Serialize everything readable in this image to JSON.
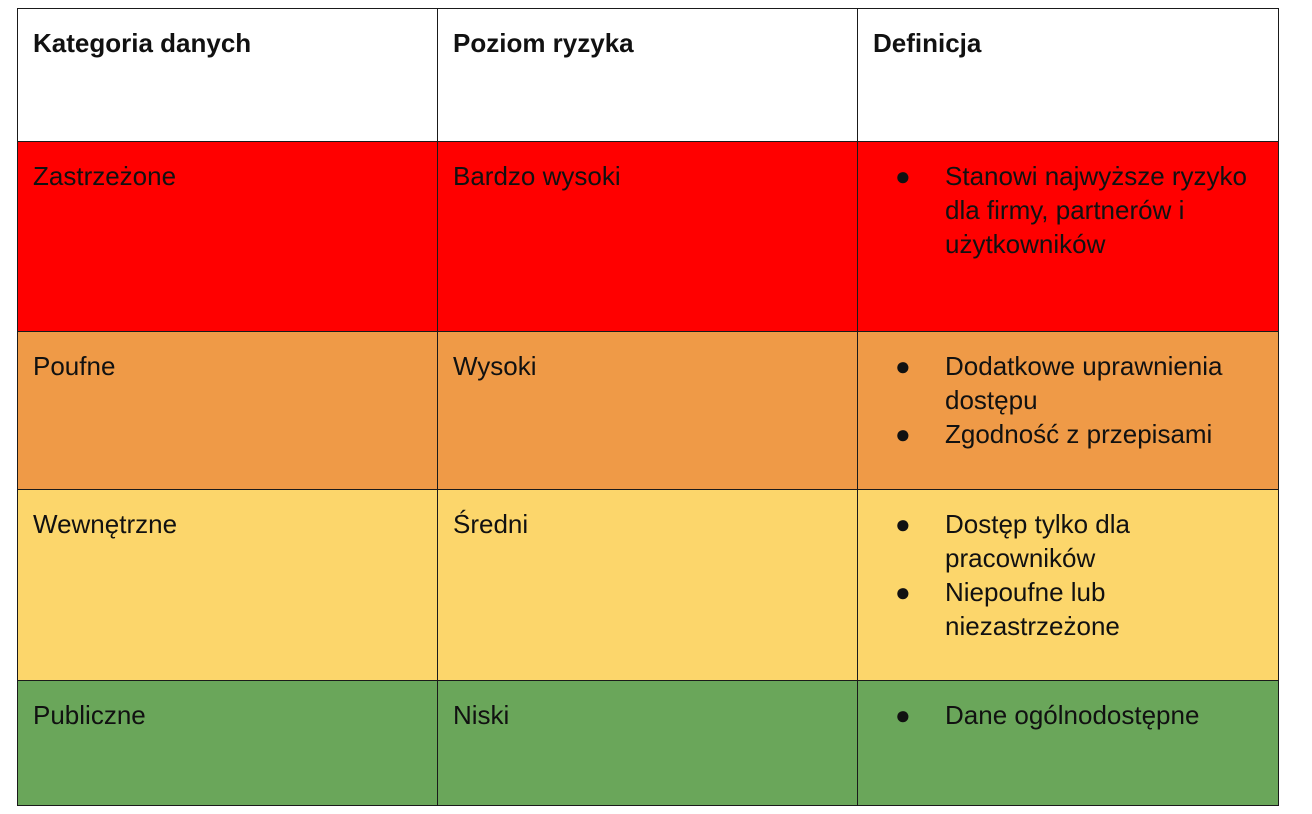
{
  "table": {
    "headers": [
      "Kategoria danych",
      "Poziom ryzyka",
      "Definicja"
    ],
    "rows": [
      {
        "category": "Zastrzeżone",
        "risk": "Bardzo wysoki",
        "color": "#ff0000",
        "definitions": [
          "Stanowi najwyższe ryzyko dla firmy, partnerów i użytkowników"
        ]
      },
      {
        "category": "Poufne",
        "risk": "Wysoki",
        "color": "#ef9a47",
        "definitions": [
          "Dodatkowe uprawnienia dostępu",
          "Zgodność z przepisami"
        ]
      },
      {
        "category": "Wewnętrzne",
        "risk": "Średni",
        "color": "#fcd66b",
        "definitions": [
          "Dostęp tylko dla pracowników",
          "Niepoufne lub niezastrzeżone"
        ]
      },
      {
        "category": "Publiczne",
        "risk": "Niski",
        "color": "#6aa65a",
        "definitions": [
          "Dane ogólnodostępne"
        ]
      }
    ],
    "bullet": "●"
  }
}
